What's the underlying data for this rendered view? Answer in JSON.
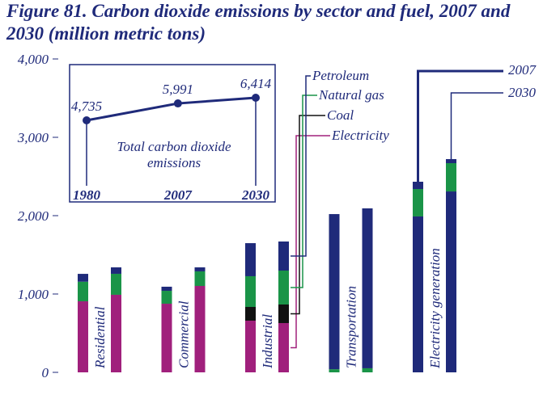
{
  "chart_data": [
    {
      "type": "stacked_bar",
      "title": "Figure 81. Carbon dioxide emissions by sector and fuel, 2007 and 2030 (million metric tons)",
      "categories": [
        "Residential",
        "Commercial",
        "Industrial",
        "Transportation",
        "Electricity generation"
      ],
      "years": [
        "2007",
        "2030"
      ],
      "series": [
        {
          "name": "Electricity",
          "color": "#a0207c",
          "values": [
            [
              907,
              990
            ],
            [
              876,
              1103
            ],
            [
              660,
              629
            ],
            [
              0,
              0
            ],
            [
              0,
              0
            ]
          ]
        },
        {
          "name": "Coal",
          "color": "#111111",
          "bar_colors": [
            "#111111",
            "#111111",
            "#111111",
            "#111111",
            "#1f2a7a"
          ],
          "values": [
            [
              0,
              0
            ],
            [
              0,
              0
            ],
            [
              175,
              237
            ],
            [
              0,
              0
            ],
            [
              1990,
              2309
            ]
          ]
        },
        {
          "name": "Natural gas",
          "color": "#1a9448",
          "values": [
            [
              250,
              268
            ],
            [
              165,
              186
            ],
            [
              392,
              433
            ],
            [
              40,
              52
            ],
            [
              350,
              361
            ]
          ]
        },
        {
          "name": "Petroleum",
          "color": "#1f2a7a",
          "values": [
            [
              100,
              82
            ],
            [
              52,
              51
            ],
            [
              422,
              371
            ],
            [
              1980,
              2041
            ],
            [
              93,
              52
            ]
          ]
        }
      ],
      "ylim": [
        0,
        4000
      ],
      "yticks": [
        0,
        {
          "value": 1000,
          "label": "1,000"
        },
        {
          "value": 2000,
          "label": "2,000"
        },
        {
          "value": 3000,
          "label": "3,000"
        },
        {
          "value": 4000,
          "label": "4,000"
        }
      ]
    },
    {
      "type": "line",
      "title": "Total carbon dioxide emissions",
      "x": [
        1980,
        2007,
        2030
      ],
      "values": [
        4735,
        5991,
        6414
      ],
      "value_labels": [
        "4,735",
        "5,991",
        "6,414"
      ],
      "color": "#1f2a7a",
      "xlim": [
        1980,
        2030
      ],
      "xticks": [
        1980,
        2007,
        2030
      ]
    }
  ]
}
